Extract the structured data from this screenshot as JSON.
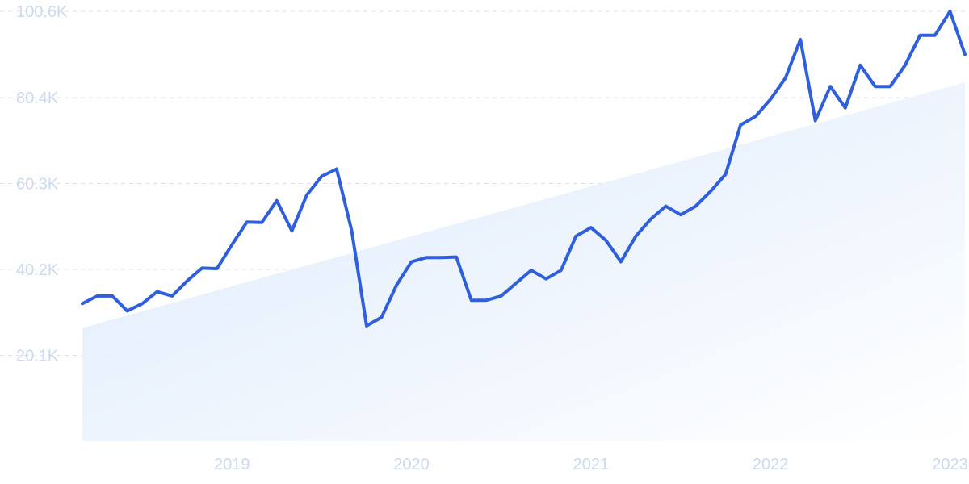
{
  "chart_data": {
    "type": "line",
    "title": "",
    "xlabel": "",
    "ylabel": "",
    "x_tick_labels": [
      "2019",
      "2020",
      "2021",
      "2022",
      "2023"
    ],
    "y_tick_labels": [
      "20.1K",
      "40.2K",
      "60.3K",
      "80.4K",
      "100.6K"
    ],
    "y_ticks": [
      20100,
      40200,
      60300,
      80400,
      100600
    ],
    "ylim": [
      0,
      100600
    ],
    "xlim": [
      "2018-09",
      "2023-08"
    ],
    "grid": true,
    "legend": "none",
    "series": [
      {
        "color": "#2f5fdc",
        "x": [
          "2018-09",
          "2018-10",
          "2018-11",
          "2018-12",
          "2019-01",
          "2019-02",
          "2019-03",
          "2019-04",
          "2019-05",
          "2019-06",
          "2019-07",
          "2019-08",
          "2019-09",
          "2019-10",
          "2019-11",
          "2019-12",
          "2020-01",
          "2020-02",
          "2020-03",
          "2020-04",
          "2020-05",
          "2020-06",
          "2020-07",
          "2020-08",
          "2020-09",
          "2020-10",
          "2020-11",
          "2020-12",
          "2021-01",
          "2021-02",
          "2021-03",
          "2021-04",
          "2021-05",
          "2021-06",
          "2021-07",
          "2021-08",
          "2021-09",
          "2021-10",
          "2021-11",
          "2021-12",
          "2022-01",
          "2022-02",
          "2022-03",
          "2022-04",
          "2022-05",
          "2022-06",
          "2022-07",
          "2022-08",
          "2022-09",
          "2022-10",
          "2022-11",
          "2022-12",
          "2023-01",
          "2023-02",
          "2023-03",
          "2023-04",
          "2023-05",
          "2023-06",
          "2023-07",
          "2023-08"
        ],
        "values": [
          32200,
          34000,
          34000,
          30500,
          32200,
          35000,
          34000,
          37500,
          40500,
          40400,
          46000,
          51300,
          51200,
          56300,
          49200,
          57600,
          62000,
          63700,
          49300,
          27000,
          29000,
          36500,
          42000,
          43000,
          43000,
          43100,
          33000,
          33000,
          34000,
          37000,
          40000,
          38000,
          40000,
          48000,
          50000,
          47000,
          42000,
          48000,
          52000,
          55000,
          53000,
          55000,
          58500,
          62500,
          74000,
          76000,
          80000,
          85000,
          94000,
          75000,
          83000,
          78000,
          88000,
          83000,
          83000,
          88000,
          95000,
          95000,
          100600,
          90500
        ]
      }
    ],
    "trend_area": {
      "color": "#dceafb",
      "start": {
        "x": "2018-09",
        "y": 26500
      },
      "end": {
        "x": "2023-08",
        "y": 84000
      }
    }
  }
}
